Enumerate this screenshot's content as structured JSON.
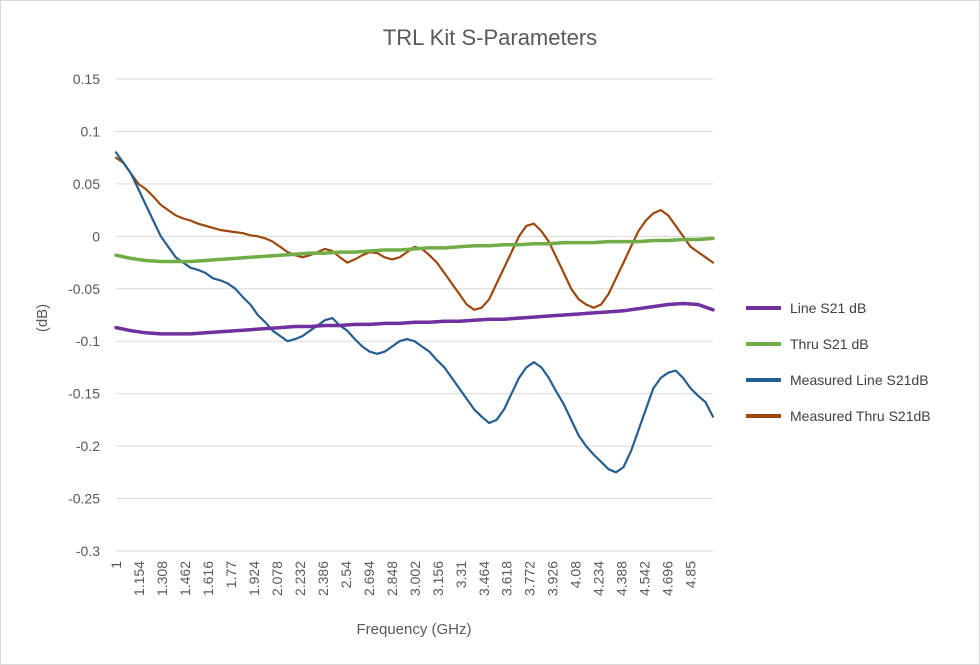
{
  "chart_data": {
    "type": "line",
    "title": "TRL Kit S-Parameters",
    "xlabel": "Frequency (GHz)",
    "ylabel": "(dB)",
    "ylim": [
      -0.3,
      0.15
    ],
    "yticks": [
      0.15,
      0.1,
      0.05,
      0,
      -0.05,
      -0.1,
      -0.15,
      -0.2,
      -0.25,
      -0.3
    ],
    "ytick_labels": [
      "0.15",
      "0.1",
      "0.05",
      "0",
      "-0.05",
      "-0.1",
      "-0.15",
      "-0.2",
      "-0.25",
      "-0.3"
    ],
    "xlim": [
      1,
      5
    ],
    "xticks": [
      1,
      1.154,
      1.308,
      1.462,
      1.616,
      1.77,
      1.924,
      2.078,
      2.232,
      2.386,
      2.54,
      2.694,
      2.848,
      3.002,
      3.156,
      3.31,
      3.464,
      3.618,
      3.772,
      3.926,
      4.08,
      4.234,
      4.388,
      4.542,
      4.696,
      4.85
    ],
    "xtick_labels": [
      "1",
      "1.154",
      "1.308",
      "1.462",
      "1.616",
      "1.77",
      "1.924",
      "2.078",
      "2.232",
      "2.386",
      "2.54",
      "2.694",
      "2.848",
      "3.002",
      "3.156",
      "3.31",
      "3.464",
      "3.618",
      "3.772",
      "3.926",
      "4.08",
      "4.234",
      "4.388",
      "4.542",
      "4.696",
      "4.85"
    ],
    "grid": true,
    "legend_position": "right",
    "series": [
      {
        "name": "Line S21 dB",
        "color": "#7030a0",
        "x": [
          1.0,
          1.1,
          1.2,
          1.3,
          1.4,
          1.5,
          1.6,
          1.7,
          1.8,
          1.9,
          2.0,
          2.1,
          2.2,
          2.3,
          2.4,
          2.5,
          2.6,
          2.7,
          2.8,
          2.9,
          3.0,
          3.1,
          3.2,
          3.3,
          3.4,
          3.5,
          3.6,
          3.7,
          3.8,
          3.9,
          4.0,
          4.1,
          4.2,
          4.3,
          4.4,
          4.5,
          4.6,
          4.7,
          4.8,
          4.9,
          5.0
        ],
        "y": [
          -0.087,
          -0.09,
          -0.092,
          -0.093,
          -0.093,
          -0.093,
          -0.092,
          -0.091,
          -0.09,
          -0.089,
          -0.088,
          -0.087,
          -0.086,
          -0.086,
          -0.085,
          -0.085,
          -0.084,
          -0.084,
          -0.083,
          -0.083,
          -0.082,
          -0.082,
          -0.081,
          -0.081,
          -0.08,
          -0.079,
          -0.079,
          -0.078,
          -0.077,
          -0.076,
          -0.075,
          -0.074,
          -0.073,
          -0.072,
          -0.071,
          -0.069,
          -0.067,
          -0.065,
          -0.064,
          -0.065,
          -0.07
        ]
      },
      {
        "name": "Thru S21 dB",
        "color": "#70ad47",
        "x": [
          1.0,
          1.1,
          1.2,
          1.3,
          1.4,
          1.5,
          1.6,
          1.7,
          1.8,
          1.9,
          2.0,
          2.1,
          2.2,
          2.3,
          2.4,
          2.5,
          2.6,
          2.7,
          2.8,
          2.9,
          3.0,
          3.1,
          3.2,
          3.3,
          3.4,
          3.5,
          3.6,
          3.7,
          3.8,
          3.9,
          4.0,
          4.1,
          4.2,
          4.3,
          4.4,
          4.5,
          4.6,
          4.7,
          4.8,
          4.9,
          5.0
        ],
        "y": [
          -0.018,
          -0.021,
          -0.023,
          -0.024,
          -0.024,
          -0.024,
          -0.023,
          -0.022,
          -0.021,
          -0.02,
          -0.019,
          -0.018,
          -0.017,
          -0.016,
          -0.016,
          -0.015,
          -0.015,
          -0.014,
          -0.013,
          -0.013,
          -0.012,
          -0.011,
          -0.011,
          -0.01,
          -0.009,
          -0.009,
          -0.008,
          -0.008,
          -0.007,
          -0.007,
          -0.006,
          -0.006,
          -0.006,
          -0.005,
          -0.005,
          -0.005,
          -0.004,
          -0.004,
          -0.003,
          -0.003,
          -0.002
        ]
      },
      {
        "name": "Measured Line S21dB",
        "color": "#255e91",
        "x": [
          1.0,
          1.05,
          1.1,
          1.15,
          1.2,
          1.25,
          1.3,
          1.35,
          1.4,
          1.45,
          1.5,
          1.55,
          1.6,
          1.65,
          1.7,
          1.75,
          1.8,
          1.85,
          1.9,
          1.95,
          2.0,
          2.05,
          2.1,
          2.15,
          2.2,
          2.25,
          2.3,
          2.35,
          2.4,
          2.45,
          2.5,
          2.55,
          2.6,
          2.65,
          2.7,
          2.75,
          2.8,
          2.85,
          2.9,
          2.95,
          3.0,
          3.05,
          3.1,
          3.15,
          3.2,
          3.25,
          3.3,
          3.35,
          3.4,
          3.45,
          3.5,
          3.55,
          3.6,
          3.65,
          3.7,
          3.75,
          3.8,
          3.85,
          3.9,
          3.95,
          4.0,
          4.05,
          4.1,
          4.15,
          4.2,
          4.25,
          4.3,
          4.35,
          4.4,
          4.45,
          4.5,
          4.55,
          4.6,
          4.65,
          4.7,
          4.75,
          4.8,
          4.85,
          4.9,
          4.95,
          5.0
        ],
        "y": [
          0.08,
          0.07,
          0.06,
          0.045,
          0.03,
          0.015,
          0.0,
          -0.01,
          -0.02,
          -0.025,
          -0.03,
          -0.032,
          -0.035,
          -0.04,
          -0.042,
          -0.045,
          -0.05,
          -0.058,
          -0.065,
          -0.075,
          -0.082,
          -0.09,
          -0.095,
          -0.1,
          -0.098,
          -0.095,
          -0.09,
          -0.085,
          -0.08,
          -0.078,
          -0.085,
          -0.09,
          -0.098,
          -0.105,
          -0.11,
          -0.112,
          -0.11,
          -0.105,
          -0.1,
          -0.098,
          -0.1,
          -0.105,
          -0.11,
          -0.118,
          -0.125,
          -0.135,
          -0.145,
          -0.155,
          -0.165,
          -0.172,
          -0.178,
          -0.175,
          -0.165,
          -0.15,
          -0.135,
          -0.125,
          -0.12,
          -0.125,
          -0.135,
          -0.148,
          -0.16,
          -0.175,
          -0.19,
          -0.2,
          -0.208,
          -0.215,
          -0.222,
          -0.225,
          -0.22,
          -0.205,
          -0.185,
          -0.165,
          -0.145,
          -0.135,
          -0.13,
          -0.128,
          -0.135,
          -0.145,
          -0.152,
          -0.158,
          -0.172
        ]
      },
      {
        "name": "Measured Thru S21dB",
        "color": "#9e480e",
        "x": [
          1.0,
          1.05,
          1.1,
          1.15,
          1.2,
          1.25,
          1.3,
          1.35,
          1.4,
          1.45,
          1.5,
          1.55,
          1.6,
          1.65,
          1.7,
          1.75,
          1.8,
          1.85,
          1.9,
          1.95,
          2.0,
          2.05,
          2.1,
          2.15,
          2.2,
          2.25,
          2.3,
          2.35,
          2.4,
          2.45,
          2.5,
          2.55,
          2.6,
          2.65,
          2.7,
          2.75,
          2.8,
          2.85,
          2.9,
          2.95,
          3.0,
          3.05,
          3.1,
          3.15,
          3.2,
          3.25,
          3.3,
          3.35,
          3.4,
          3.45,
          3.5,
          3.55,
          3.6,
          3.65,
          3.7,
          3.75,
          3.8,
          3.85,
          3.9,
          3.95,
          4.0,
          4.05,
          4.1,
          4.15,
          4.2,
          4.25,
          4.3,
          4.35,
          4.4,
          4.45,
          4.5,
          4.55,
          4.6,
          4.65,
          4.7,
          4.75,
          4.8,
          4.85,
          4.9,
          4.95,
          5.0
        ],
        "y": [
          0.075,
          0.07,
          0.06,
          0.05,
          0.045,
          0.038,
          0.03,
          0.025,
          0.02,
          0.017,
          0.015,
          0.012,
          0.01,
          0.008,
          0.006,
          0.005,
          0.004,
          0.003,
          0.001,
          0.0,
          -0.002,
          -0.005,
          -0.01,
          -0.015,
          -0.018,
          -0.02,
          -0.018,
          -0.015,
          -0.012,
          -0.014,
          -0.02,
          -0.025,
          -0.022,
          -0.018,
          -0.015,
          -0.016,
          -0.02,
          -0.022,
          -0.02,
          -0.015,
          -0.01,
          -0.012,
          -0.018,
          -0.025,
          -0.035,
          -0.045,
          -0.055,
          -0.065,
          -0.07,
          -0.068,
          -0.06,
          -0.045,
          -0.03,
          -0.015,
          0.0,
          0.01,
          0.012,
          0.005,
          -0.005,
          -0.02,
          -0.035,
          -0.05,
          -0.06,
          -0.065,
          -0.068,
          -0.065,
          -0.055,
          -0.04,
          -0.025,
          -0.01,
          0.005,
          0.015,
          0.022,
          0.025,
          0.02,
          0.01,
          0.0,
          -0.01,
          -0.015,
          -0.02,
          -0.025
        ]
      }
    ]
  }
}
